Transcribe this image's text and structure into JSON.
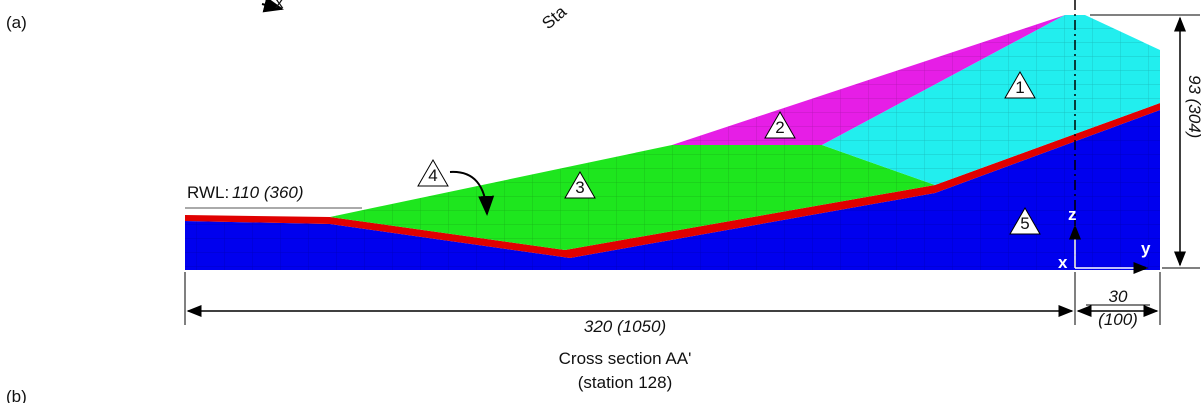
{
  "panel_labels": [
    "(a)",
    "(b)"
  ],
  "axis_fragment": "x",
  "station_fragment": "Sta",
  "water_level": {
    "label": "RWL:",
    "value": "110 (360)"
  },
  "zones": [
    "1",
    "2",
    "3",
    "4",
    "5"
  ],
  "axes": [
    "z",
    "y",
    "x"
  ],
  "dimensions": {
    "base_length": "320 (1050)",
    "crest_width_value": "30",
    "crest_width_unit": "(100)",
    "height": "93 (304)"
  },
  "caption": {
    "title": "Cross section AA'",
    "station": "(station 128)"
  }
}
